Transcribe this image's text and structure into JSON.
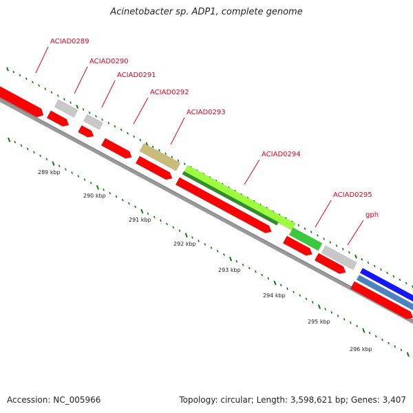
{
  "title": "Acinetobacter sp. ADP1, complete genome",
  "footer": {
    "accession": "Accession: NC_005966",
    "topology": "Topology: circular; Length: 3,598,621 bp; Genes: 3,407"
  },
  "colors": {
    "red": "#ff0000",
    "gray": "#c8c8c8",
    "olive": "#c8bc78",
    "green": "#39c93a",
    "lightgreen": "#9dff3c",
    "blue": "#1515ff",
    "steelblue": "#4a83c4",
    "axis_ticks": "#0a7a0a",
    "label": "#e0001a"
  },
  "scale_labels": [
    "289 kbp",
    "290 kbp",
    "291 kbp",
    "292 kbp",
    "293 kbp",
    "294 kbp",
    "295 kbp",
    "296 kbp"
  ],
  "gene_labels": [
    "ACIAD0289",
    "ACIAD0290",
    "ACIAD0291",
    "ACIAD0292",
    "ACIAD0293",
    "ACIAD0294",
    "ACIAD0295",
    "gph"
  ],
  "features": [
    {
      "track": "upper",
      "color": "gray"
    },
    {
      "track": "upper",
      "color": "gray"
    },
    {
      "track": "upper",
      "color": "olive"
    },
    {
      "track": "upper",
      "color": "lightgreen"
    },
    {
      "track": "upper",
      "color": "green"
    },
    {
      "track": "upper",
      "color": "gray"
    },
    {
      "track": "upper",
      "color": "blue"
    },
    {
      "track": "mid",
      "color": "steelblue"
    },
    {
      "track": "cds",
      "color": "red"
    },
    {
      "track": "cds",
      "color": "red"
    },
    {
      "track": "cds",
      "color": "red"
    },
    {
      "track": "cds",
      "color": "red"
    },
    {
      "track": "cds",
      "color": "red"
    },
    {
      "track": "cds",
      "color": "red"
    },
    {
      "track": "cds",
      "color": "red"
    },
    {
      "track": "cds",
      "color": "red"
    },
    {
      "track": "cds",
      "color": "red"
    },
    {
      "track": "mid",
      "color": "lightgreen"
    }
  ]
}
